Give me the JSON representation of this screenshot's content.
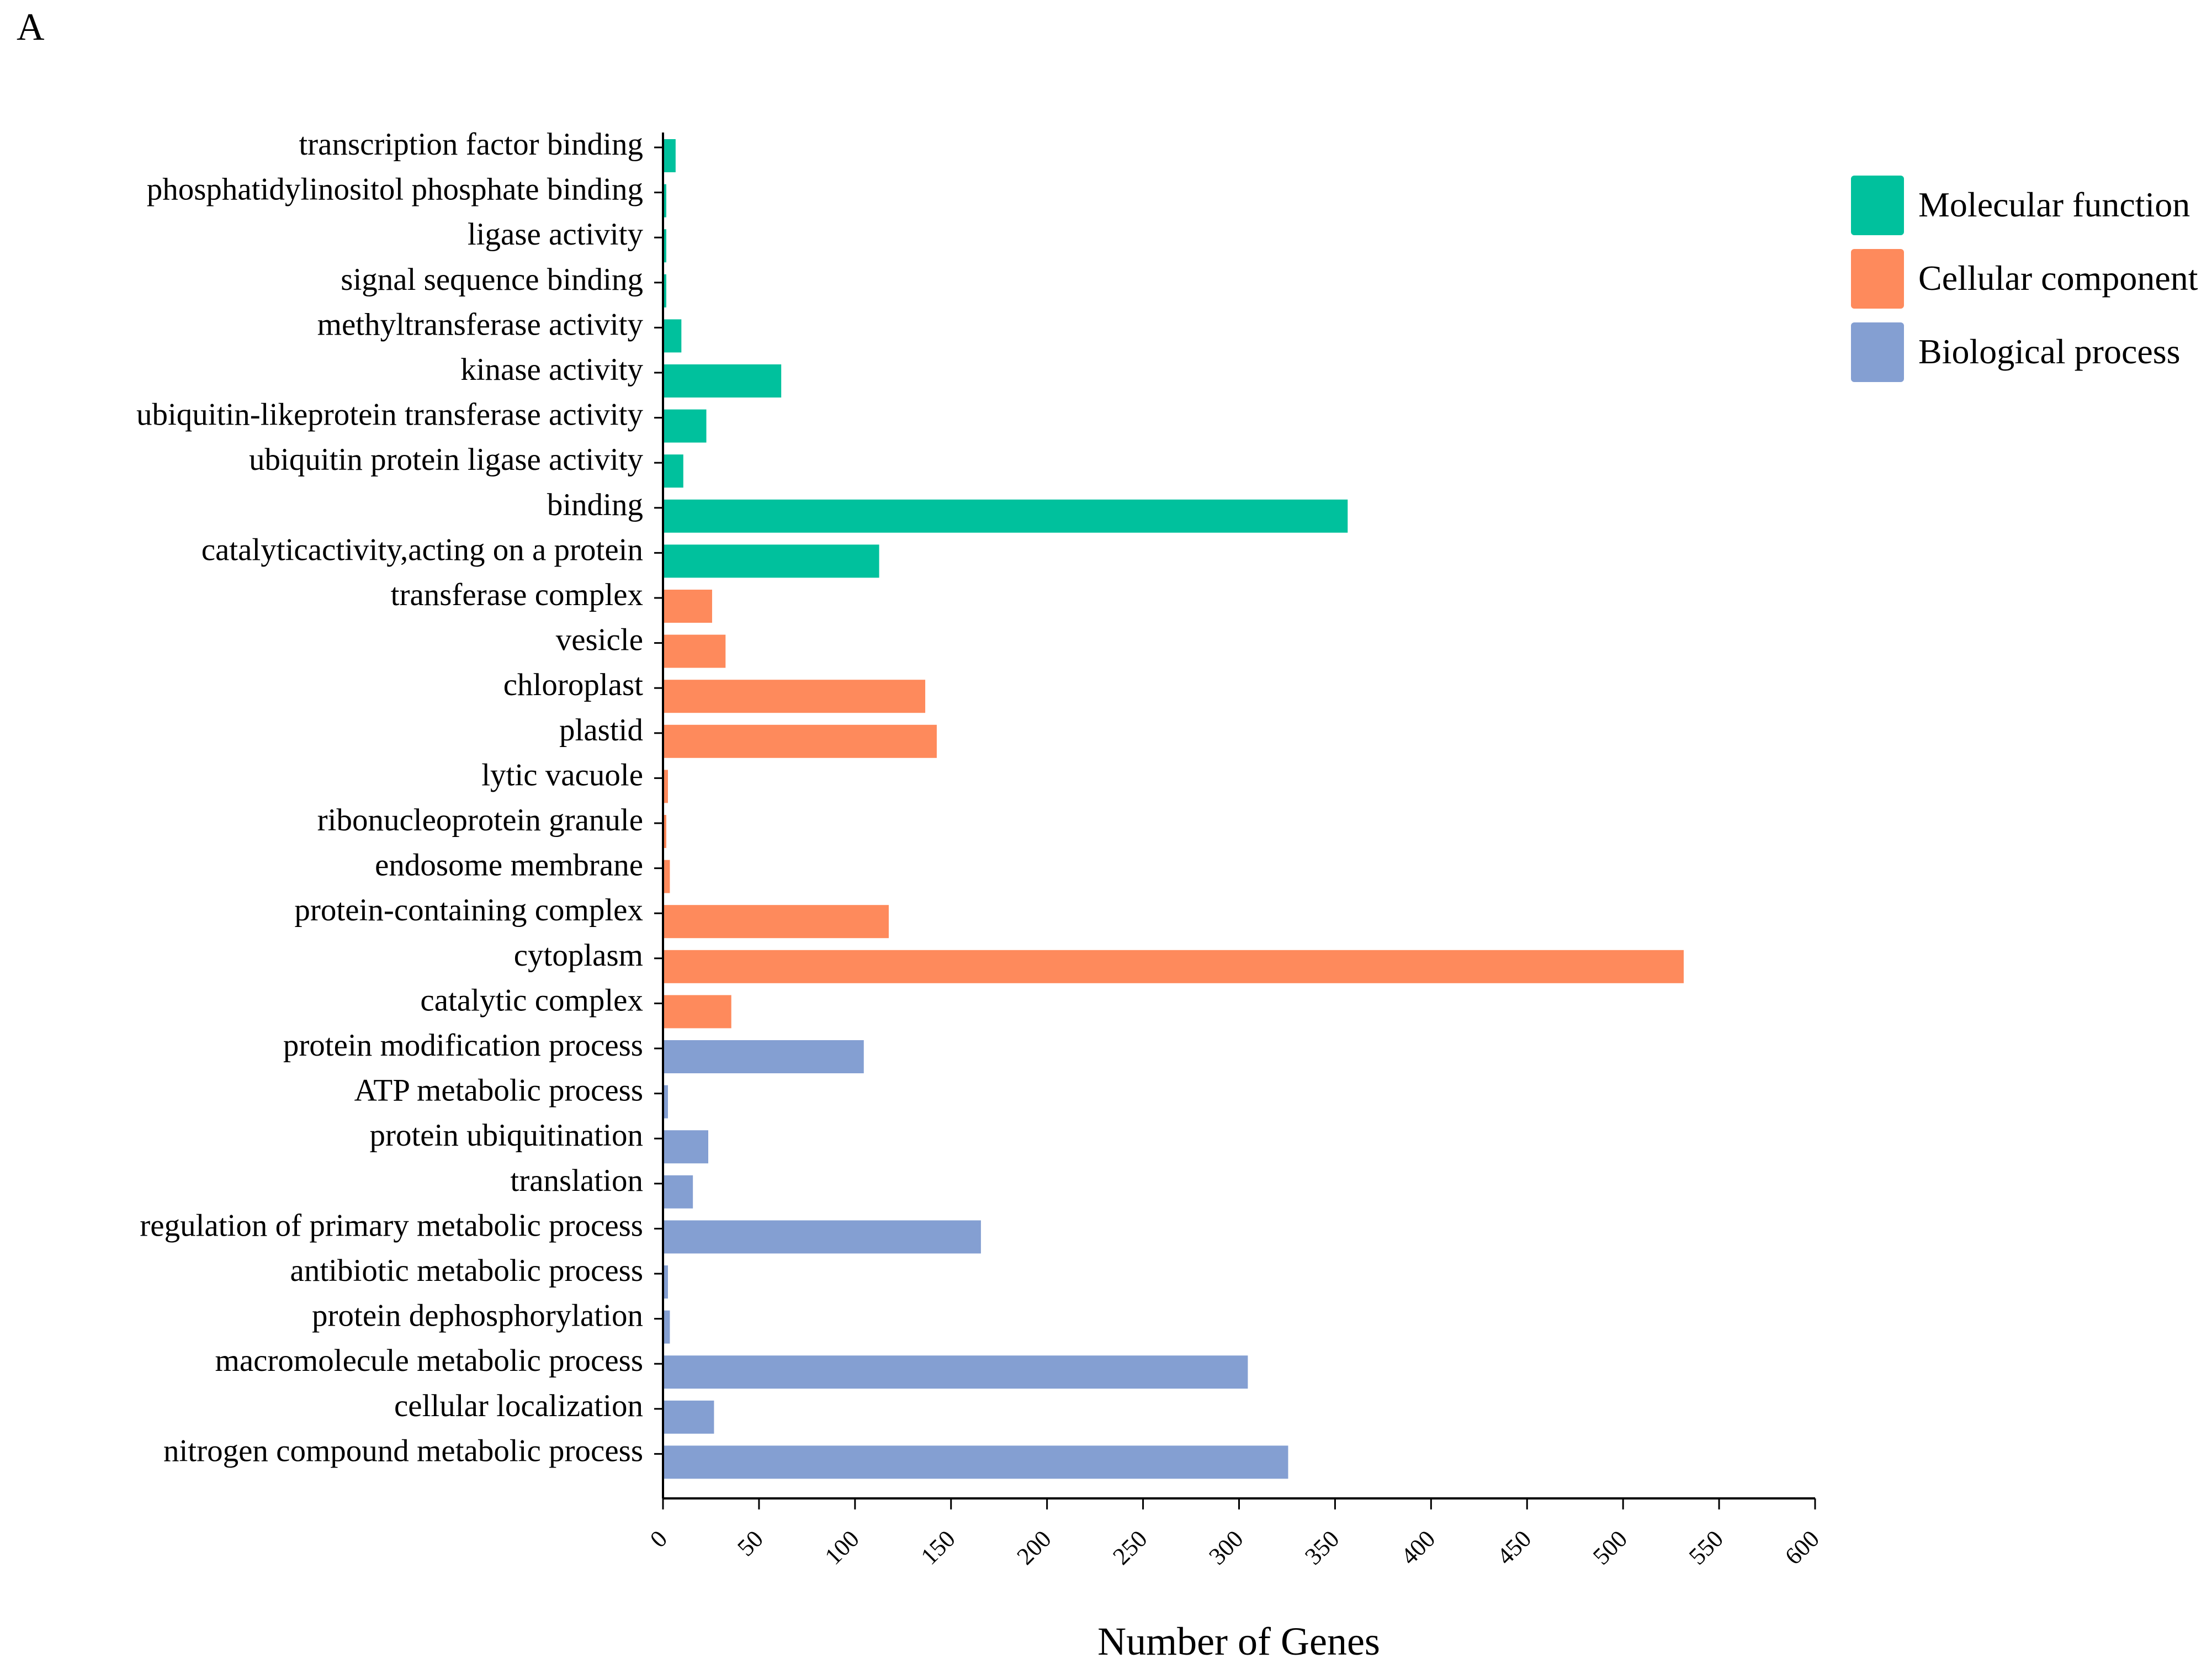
{
  "panel_label": "A",
  "chart_data": {
    "type": "bar",
    "orientation": "horizontal",
    "title": "",
    "xlabel": "Number of Genes",
    "ylabel": "",
    "xlim": [
      0,
      600
    ],
    "xticks": [
      "0",
      "50",
      "100",
      "150",
      "200",
      "250",
      "300",
      "350",
      "400",
      "450",
      "500",
      "550",
      "600"
    ],
    "legend_position": "top-right",
    "legend": [
      {
        "name": "Molecular function",
        "color": "#00c19d"
      },
      {
        "name": "Cellular component",
        "color": "#fe8a5c"
      },
      {
        "name": "Biological process",
        "color": "#849fd2"
      }
    ],
    "bars": [
      {
        "label": "transcription factor binding",
        "value": 6,
        "group": 0
      },
      {
        "label": "phosphatidylinositol phosphate binding",
        "value": 1,
        "group": 0
      },
      {
        "label": "ligase activity",
        "value": 1,
        "group": 0
      },
      {
        "label": "signal sequence binding",
        "value": 1,
        "group": 0
      },
      {
        "label": "methyltransferase activity",
        "value": 9,
        "group": 0
      },
      {
        "label": "kinase activity",
        "value": 61,
        "group": 0
      },
      {
        "label": "ubiquitin-likeprotein transferase activity",
        "value": 22,
        "group": 0
      },
      {
        "label": "ubiquitin protein ligase activity",
        "value": 10,
        "group": 0
      },
      {
        "label": "binding",
        "value": 356,
        "group": 0
      },
      {
        "label": "catalyticactivity,acting on a protein",
        "value": 112,
        "group": 0
      },
      {
        "label": "transferase complex",
        "value": 25,
        "group": 1
      },
      {
        "label": "vesicle",
        "value": 32,
        "group": 1
      },
      {
        "label": "chloroplast",
        "value": 136,
        "group": 1
      },
      {
        "label": "plastid",
        "value": 142,
        "group": 1
      },
      {
        "label": "lytic vacuole",
        "value": 2,
        "group": 1
      },
      {
        "label": "ribonucleoprotein granule",
        "value": 1,
        "group": 1
      },
      {
        "label": "endosome membrane",
        "value": 3,
        "group": 1
      },
      {
        "label": "protein-containing complex",
        "value": 117,
        "group": 1
      },
      {
        "label": "cytoplasm",
        "value": 531,
        "group": 1
      },
      {
        "label": "catalytic complex",
        "value": 35,
        "group": 1
      },
      {
        "label": "protein modification process",
        "value": 104,
        "group": 2
      },
      {
        "label": "ATP metabolic process",
        "value": 2,
        "group": 2
      },
      {
        "label": "protein ubiquitination",
        "value": 23,
        "group": 2
      },
      {
        "label": "translation",
        "value": 15,
        "group": 2
      },
      {
        "label": "regulation of primary metabolic process",
        "value": 165,
        "group": 2
      },
      {
        "label": "antibiotic metabolic process",
        "value": 2,
        "group": 2
      },
      {
        "label": "protein dephosphorylation",
        "value": 3,
        "group": 2
      },
      {
        "label": "macromolecule metabolic process",
        "value": 304,
        "group": 2
      },
      {
        "label": "cellular localization",
        "value": 26,
        "group": 2
      },
      {
        "label": "nitrogen compound metabolic process",
        "value": 325,
        "group": 2
      }
    ]
  }
}
